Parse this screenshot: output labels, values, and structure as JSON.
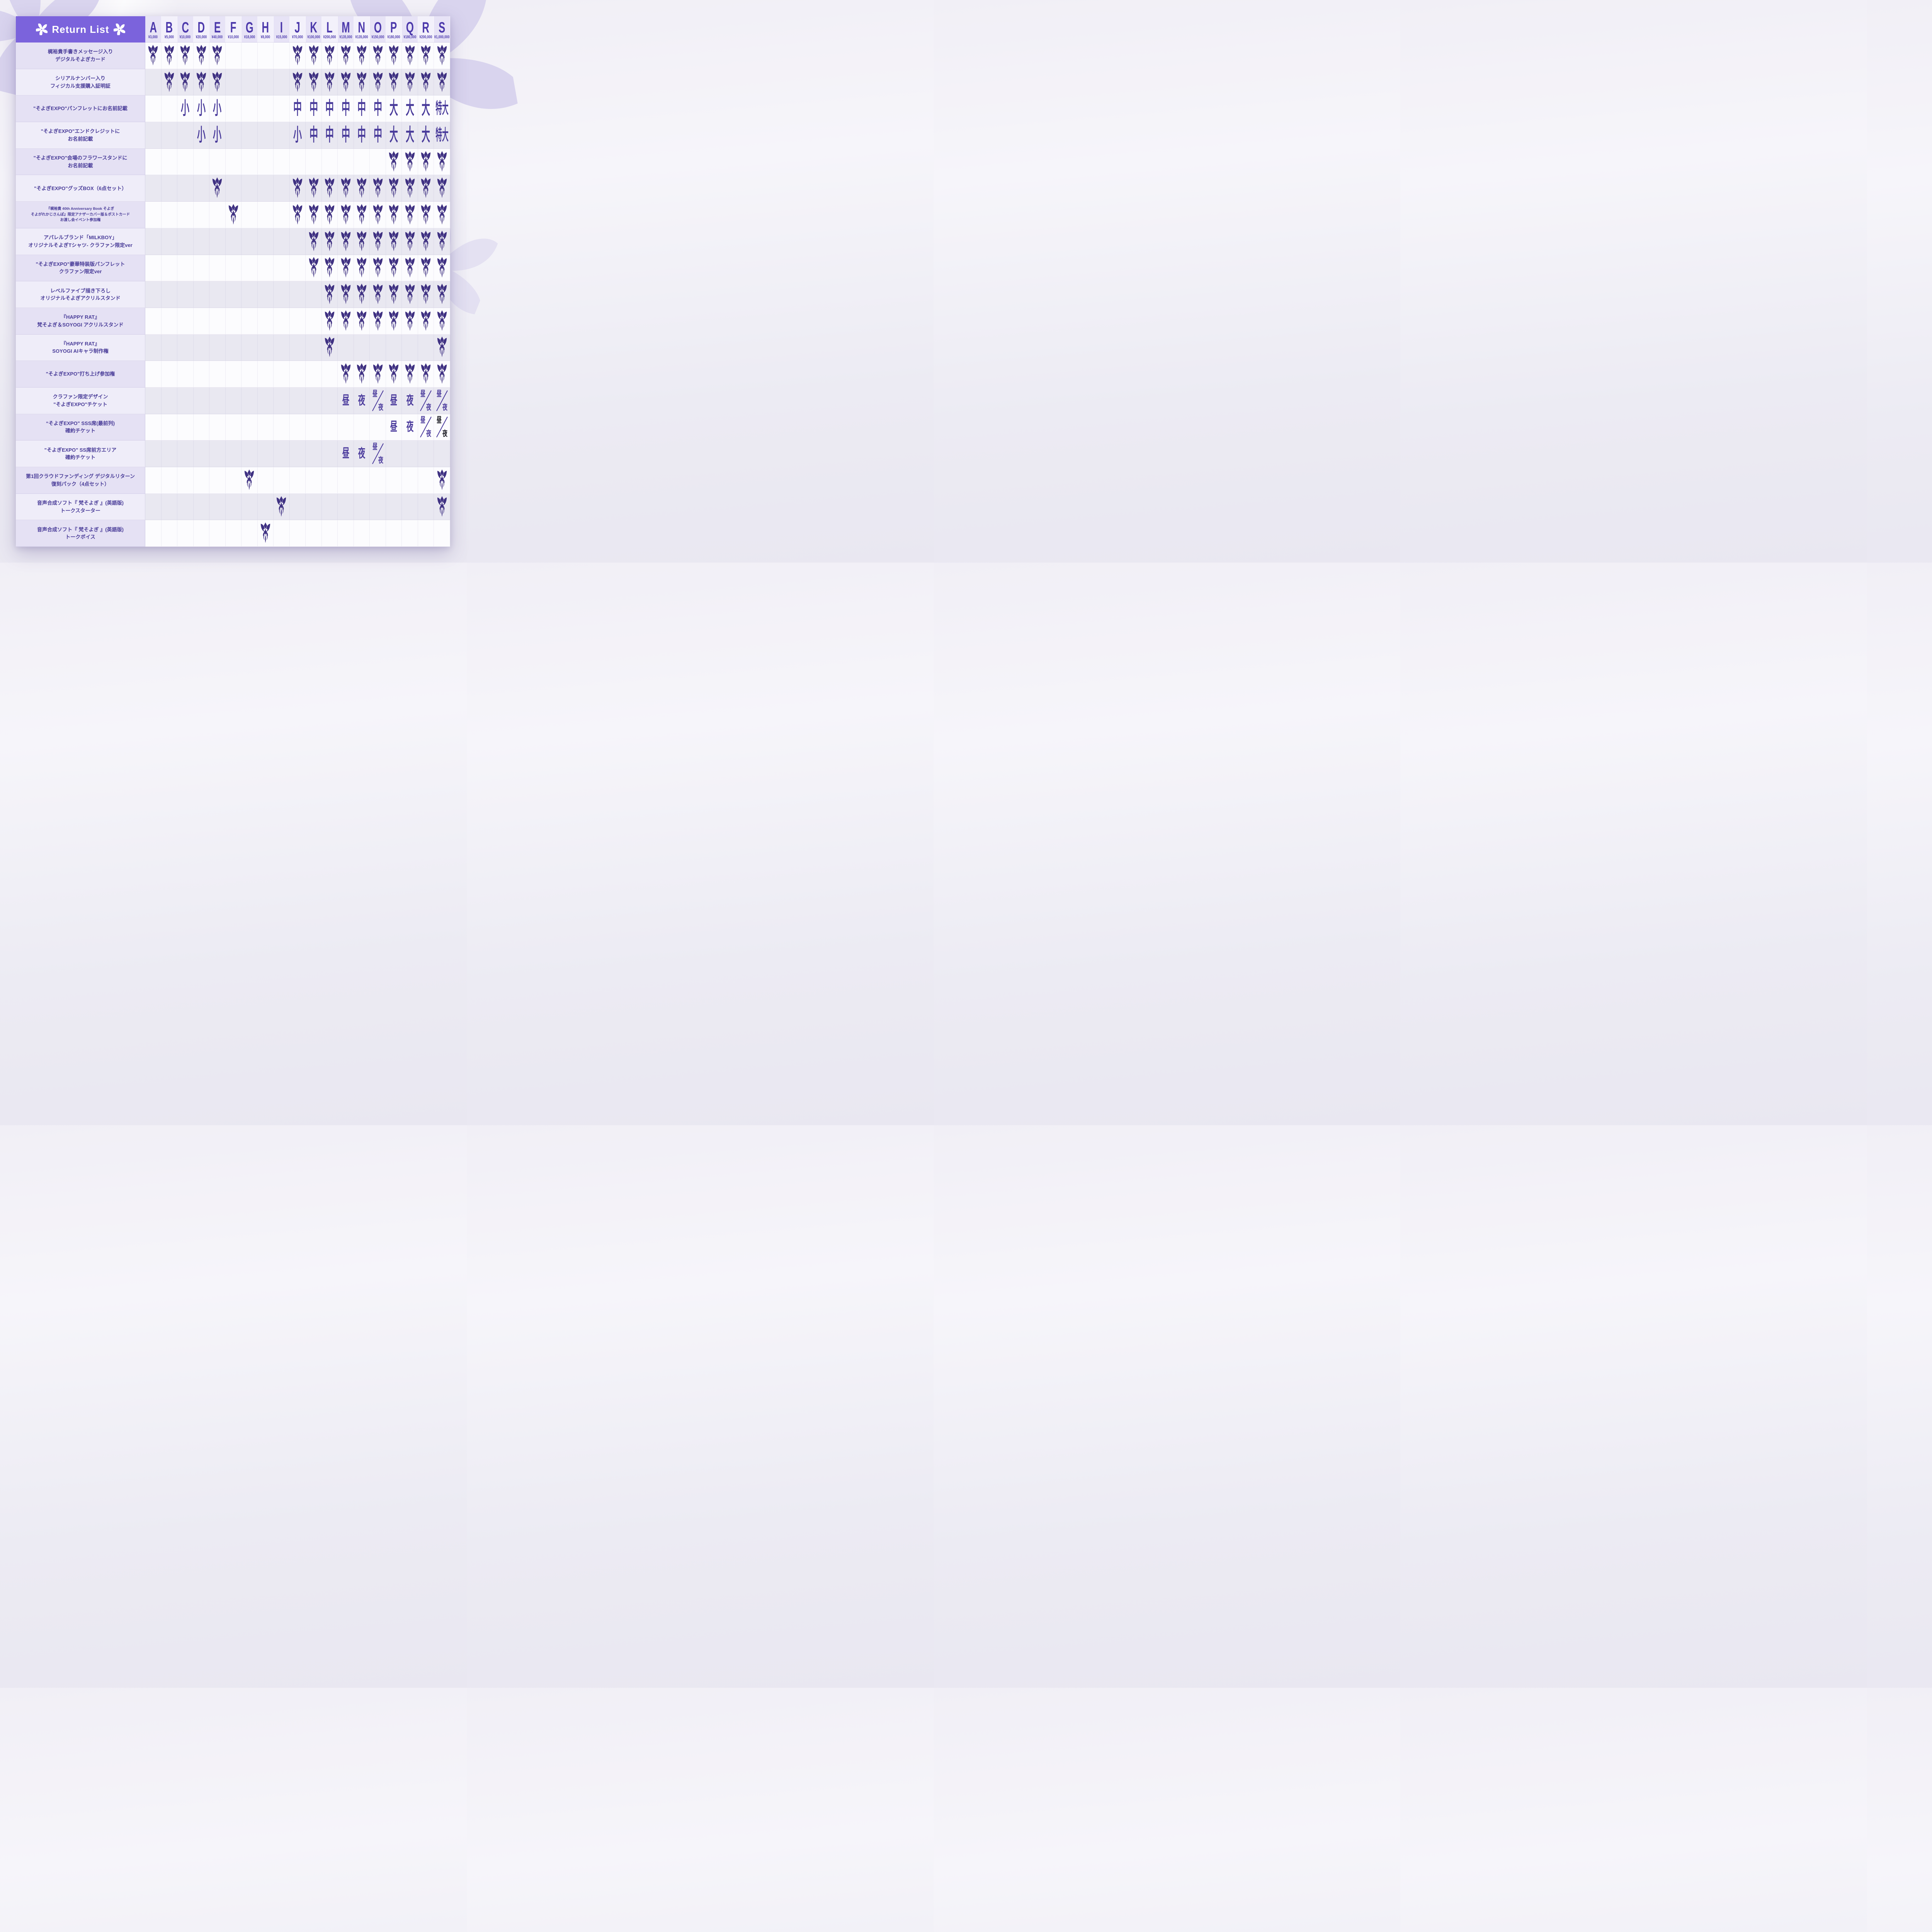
{
  "title": "Return List",
  "icons": {
    "title_left": "crest-flower-icon",
    "title_right": "crest-flower-icon",
    "mark": "fleur-de-lis-mark-icon",
    "background": "flower-silhouette-icon"
  },
  "colors": {
    "header_band": "#7b63dc",
    "column_letter": "#4c39ab",
    "column_price": "#5240b0",
    "mark": "#3f3182",
    "label_text": "#4a3d99",
    "col_stripe_dark": "#e7e3f6",
    "col_stripe_light": "#f3f1fb",
    "label_stripe_a": "#e5e1f4",
    "label_stripe_b": "#efedf9",
    "body_stripe_a": "#fcfcfe",
    "body_stripe_b": "#e9e8f1",
    "black_ticket_text": "#17171f"
  },
  "chart_data": {
    "type": "table",
    "title": "Return List",
    "legend_note": "mark = reward included; 小/中/大/特大 = name size; 昼/夜 = day/night ticket",
    "columns": [
      {
        "id": "A",
        "price": "¥3,000"
      },
      {
        "id": "B",
        "price": "¥5,000"
      },
      {
        "id": "C",
        "price": "¥10,000"
      },
      {
        "id": "D",
        "price": "¥20,000"
      },
      {
        "id": "E",
        "price": "¥40,000"
      },
      {
        "id": "F",
        "price": "¥10,000"
      },
      {
        "id": "G",
        "price": "¥18,000"
      },
      {
        "id": "H",
        "price": "¥8,000"
      },
      {
        "id": "I",
        "price": "¥15,000"
      },
      {
        "id": "J",
        "price": "¥70,000"
      },
      {
        "id": "K",
        "price": "¥100,000"
      },
      {
        "id": "L",
        "price": "¥200,000"
      },
      {
        "id": "M",
        "price": "¥135,000"
      },
      {
        "id": "N",
        "price": "¥135,000"
      },
      {
        "id": "O",
        "price": "¥150,000"
      },
      {
        "id": "P",
        "price": "¥180,000"
      },
      {
        "id": "Q",
        "price": "¥180,000"
      },
      {
        "id": "R",
        "price": "¥200,000"
      },
      {
        "id": "S",
        "price": "¥1,000,000"
      }
    ],
    "rows": [
      {
        "label": [
          "梶裕貴手書きメッセージ入り",
          "デジタルそよぎカード"
        ],
        "small": false,
        "cells": [
          "mark",
          "mark",
          "mark",
          "mark",
          "mark",
          "",
          "",
          "",
          "",
          "mark",
          "mark",
          "mark",
          "mark",
          "mark",
          "mark",
          "mark",
          "mark",
          "mark",
          "mark"
        ]
      },
      {
        "label": [
          "シリアルナンバー入り",
          "フィジカル支援購入証明証"
        ],
        "small": false,
        "cells": [
          "",
          "mark",
          "mark",
          "mark",
          "mark",
          "",
          "",
          "",
          "",
          "mark",
          "mark",
          "mark",
          "mark",
          "mark",
          "mark",
          "mark",
          "mark",
          "mark",
          "mark"
        ]
      },
      {
        "label": [
          "\"そよぎEXPO\"パンフレットにお名前記載"
        ],
        "small": false,
        "cells": [
          "",
          "",
          "小",
          "小",
          "小",
          "",
          "",
          "",
          "",
          "中",
          "中",
          "中",
          "中",
          "中",
          "中",
          "大",
          "大",
          "大",
          "特大"
        ]
      },
      {
        "label": [
          "\"そよぎEXPO\"エンドクレジットに",
          "お名前記載"
        ],
        "small": false,
        "cells": [
          "",
          "",
          "",
          "小",
          "小",
          "",
          "",
          "",
          "",
          "小",
          "中",
          "中",
          "中",
          "中",
          "中",
          "大",
          "大",
          "大",
          "特大"
        ]
      },
      {
        "label": [
          "\"そよぎEXPO\"会場のフラワースタンドに",
          "お名前記載"
        ],
        "small": false,
        "cells": [
          "",
          "",
          "",
          "",
          "",
          "",
          "",
          "",
          "",
          "",
          "",
          "",
          "",
          "",
          "",
          "mark",
          "mark",
          "mark",
          "mark"
        ]
      },
      {
        "label": [
          "\"そよぎEXPO\"グッズBOX（6点セット）"
        ],
        "small": false,
        "cells": [
          "",
          "",
          "",
          "",
          "mark",
          "",
          "",
          "",
          "",
          "mark",
          "mark",
          "mark",
          "mark",
          "mark",
          "mark",
          "mark",
          "mark",
          "mark",
          "mark"
        ]
      },
      {
        "label": [
          "『梶裕貴 40th Anniversary Book そよぎ",
          "そよがれかじさんぽ』限定アナザーカバー版＆ポストカード",
          "お渡し会イベント参加権"
        ],
        "small": true,
        "cells": [
          "",
          "",
          "",
          "",
          "",
          "mark",
          "",
          "",
          "",
          "mark",
          "mark",
          "mark",
          "mark",
          "mark",
          "mark",
          "mark",
          "mark",
          "mark",
          "mark"
        ]
      },
      {
        "label": [
          "アパレルブランド「MILKBOY」",
          "オリジナルそよぎTシャツ- クラファン限定ver"
        ],
        "small": false,
        "cells": [
          "",
          "",
          "",
          "",
          "",
          "",
          "",
          "",
          "",
          "",
          "mark",
          "mark",
          "mark",
          "mark",
          "mark",
          "mark",
          "mark",
          "mark",
          "mark"
        ]
      },
      {
        "label": [
          "\"そよぎEXPO\"豪華特装版パンフレット",
          "クラファン限定ver"
        ],
        "small": false,
        "cells": [
          "",
          "",
          "",
          "",
          "",
          "",
          "",
          "",
          "",
          "",
          "mark",
          "mark",
          "mark",
          "mark",
          "mark",
          "mark",
          "mark",
          "mark",
          "mark"
        ]
      },
      {
        "label": [
          "レベルファイブ描き下ろし",
          "オリジナルそよぎアクリルスタンド"
        ],
        "small": false,
        "cells": [
          "",
          "",
          "",
          "",
          "",
          "",
          "",
          "",
          "",
          "",
          "",
          "mark",
          "mark",
          "mark",
          "mark",
          "mark",
          "mark",
          "mark",
          "mark"
        ]
      },
      {
        "label": [
          "『HAPPY RAT』",
          "梵そよぎ＆SOYOGI アクリルスタンド"
        ],
        "small": false,
        "cells": [
          "",
          "",
          "",
          "",
          "",
          "",
          "",
          "",
          "",
          "",
          "",
          "mark",
          "mark",
          "mark",
          "mark",
          "mark",
          "mark",
          "mark",
          "mark"
        ]
      },
      {
        "label": [
          "『HAPPY RAT』",
          "SOYOGI AIキャラ制作権"
        ],
        "small": false,
        "cells": [
          "",
          "",
          "",
          "",
          "",
          "",
          "",
          "",
          "",
          "",
          "",
          "mark",
          "",
          "",
          "",
          "",
          "",
          "",
          "mark"
        ]
      },
      {
        "label": [
          "\"そよぎEXPO\"打ち上げ参加権"
        ],
        "small": false,
        "cells": [
          "",
          "",
          "",
          "",
          "",
          "",
          "",
          "",
          "",
          "",
          "",
          "",
          "mark",
          "mark",
          "mark",
          "mark",
          "mark",
          "mark",
          "mark"
        ]
      },
      {
        "label": [
          "クラファン限定デザイン",
          "\"そよぎEXPO\"チケット"
        ],
        "small": false,
        "cells": [
          "",
          "",
          "",
          "",
          "",
          "",
          "",
          "",
          "",
          "",
          "",
          "",
          "昼",
          "夜",
          "昼/夜",
          "昼",
          "夜",
          "昼/夜",
          "昼/夜"
        ]
      },
      {
        "label": [
          "“そよぎEXPO\" SSS席(最前列)",
          "確約チケット"
        ],
        "small": false,
        "cells": [
          "",
          "",
          "",
          "",
          "",
          "",
          "",
          "",
          "",
          "",
          "",
          "",
          "",
          "",
          "",
          "昼",
          "夜",
          "昼/夜",
          "昼/夜:black"
        ]
      },
      {
        "label": [
          "\"そよぎEXPO\" SS席前方エリア",
          "確約チケット"
        ],
        "small": false,
        "cells": [
          "",
          "",
          "",
          "",
          "",
          "",
          "",
          "",
          "",
          "",
          "",
          "",
          "昼",
          "夜",
          "昼/夜",
          "",
          "",
          "",
          ""
        ]
      },
      {
        "label": [
          "第1回クラウドファンディング デジタルリターン",
          "復刻パック（4点セット）"
        ],
        "small": false,
        "cells": [
          "",
          "",
          "",
          "",
          "",
          "",
          "mark",
          "",
          "",
          "",
          "",
          "",
          "",
          "",
          "",
          "",
          "",
          "",
          "mark"
        ]
      },
      {
        "label": [
          "音声合成ソフト『 梵そよぎ 』(英語版)",
          "トークスターター"
        ],
        "small": false,
        "cells": [
          "",
          "",
          "",
          "",
          "",
          "",
          "",
          "",
          "mark",
          "",
          "",
          "",
          "",
          "",
          "",
          "",
          "",
          "",
          "mark"
        ]
      },
      {
        "label": [
          "音声合成ソフト『 梵そよぎ 』(英語版)",
          "トークボイス"
        ],
        "small": false,
        "cells": [
          "",
          "",
          "",
          "",
          "",
          "",
          "",
          "mark",
          "",
          "",
          "",
          "",
          "",
          "",
          "",
          "",
          "",
          "",
          ""
        ]
      }
    ]
  }
}
